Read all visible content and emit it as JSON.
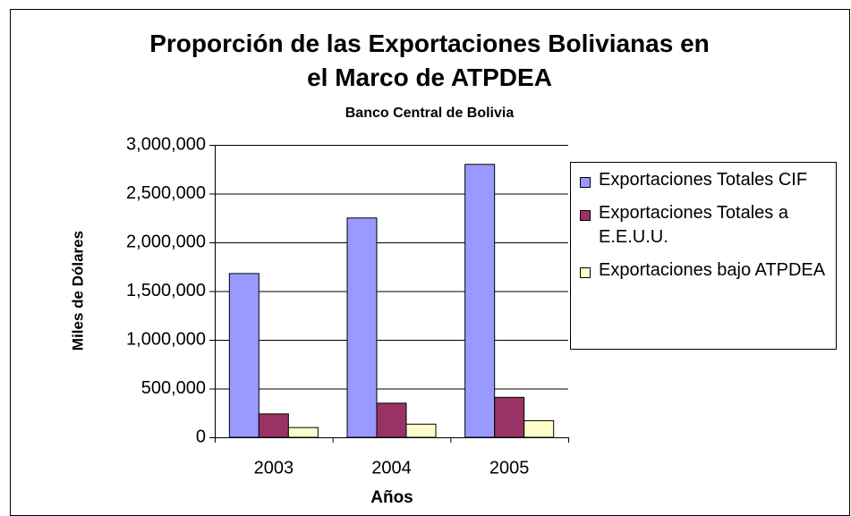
{
  "chart_data": {
    "type": "bar",
    "title": "Proporción de las Exportaciones Bolivianas en el Marco de ATPDEA",
    "subtitle": "Banco Central de Bolivia",
    "x_label": "Años",
    "y_label": "Miles de Dólares",
    "categories": [
      "2003",
      "2004",
      "2005"
    ],
    "series": [
      {
        "name": "Exportaciones Totales CIF",
        "color": "#9999ff",
        "values": [
          1680000,
          2250000,
          2800000
        ]
      },
      {
        "name": "Exportaciones Totales a E.E.U.U.",
        "color": "#993366",
        "values": [
          240000,
          350000,
          410000
        ]
      },
      {
        "name": "Exportaciones bajo ATPDEA",
        "color": "#ffffcc",
        "values": [
          100000,
          135000,
          170000
        ]
      }
    ],
    "ylim": [
      0,
      3000000
    ],
    "yticks": [
      0,
      {
        "value": 500000,
        "label": "500,000"
      },
      {
        "value": 1000000,
        "label": "1,000,000"
      },
      {
        "value": 1500000,
        "label": "1,500,000"
      },
      {
        "value": 2000000,
        "label": "2,000,000"
      },
      {
        "value": 2500000,
        "label": "2,500,000"
      },
      {
        "value": 3000000,
        "label": "3,000,000"
      }
    ],
    "grid": true,
    "legend": "right"
  }
}
